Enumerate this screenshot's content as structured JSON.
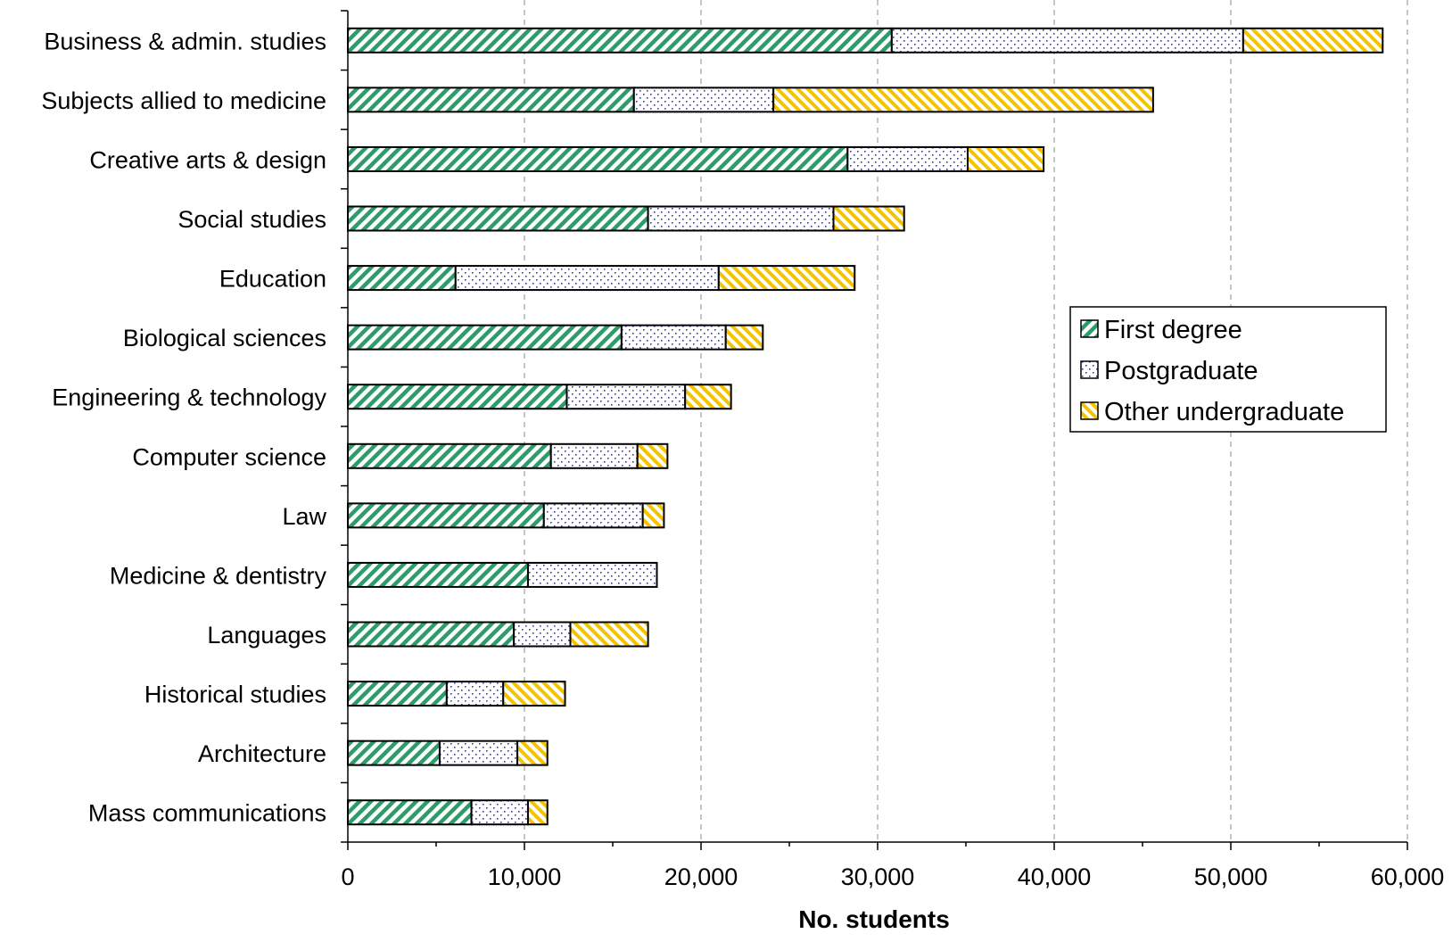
{
  "chart_data": {
    "type": "bar",
    "orientation": "horizontal",
    "stacked": true,
    "title": "",
    "xlabel": "No. students",
    "ylabel": "",
    "xlim": [
      0,
      60000
    ],
    "x_ticks": [
      0,
      10000,
      20000,
      30000,
      40000,
      50000,
      60000
    ],
    "x_tick_labels": [
      "0",
      "10,000",
      "20,000",
      "30,000",
      "40,000",
      "50,000",
      "60,000"
    ],
    "grid": "vertical dashed",
    "legend_position": "right",
    "categories": [
      "Business & admin. studies",
      "Subjects allied to medicine",
      "Creative arts & design",
      "Social studies",
      "Education",
      "Biological sciences",
      "Engineering & technology",
      "Computer science",
      "Law",
      "Medicine & dentistry",
      "Languages",
      "Historical studies",
      "Architecture",
      "Mass communications"
    ],
    "series": [
      {
        "name": "First degree",
        "color": "#2e9b6b",
        "pattern": "diagonal-hatch",
        "values": [
          30800,
          16200,
          28300,
          17000,
          6100,
          15500,
          12400,
          11500,
          11100,
          10200,
          9400,
          5600,
          5200,
          7000
        ]
      },
      {
        "name": "Postgraduate",
        "color": "#3333ff",
        "pattern": "dots",
        "values": [
          19900,
          7900,
          6800,
          10500,
          14900,
          5900,
          6700,
          4900,
          5600,
          7300,
          3200,
          3200,
          4400,
          3200
        ]
      },
      {
        "name": "Other undergraduate",
        "color": "#f5c400",
        "pattern": "diagonal-hatch-reverse",
        "values": [
          7900,
          21500,
          4300,
          4000,
          7700,
          2100,
          2600,
          1700,
          1200,
          0,
          4400,
          3500,
          1700,
          1100
        ]
      }
    ]
  }
}
